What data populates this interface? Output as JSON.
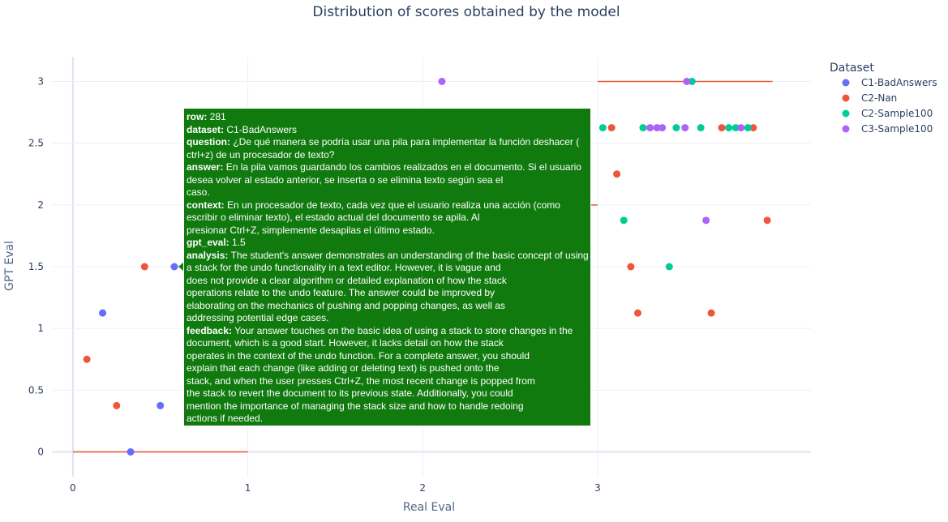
{
  "chart_data": {
    "type": "scatter",
    "title": "Distribution of scores obtained by the model",
    "xlabel": "Real Eval",
    "ylabel": "GPT Eval",
    "xlim": [
      -0.12,
      4.22
    ],
    "ylim": [
      -0.2,
      3.2
    ],
    "x_ticks": [
      "0",
      "1",
      "2",
      "3"
    ],
    "y_ticks": [
      "0",
      "0.5",
      "1",
      "1.5",
      "2",
      "2.5",
      "3"
    ],
    "grid": true,
    "legend_title": "Dataset",
    "legend_position": "top-right",
    "reference_lines": [
      {
        "x": [
          0,
          1
        ],
        "y": [
          0,
          0
        ],
        "color": "#ef553b"
      },
      {
        "x": [
          3,
          4
        ],
        "y": [
          3,
          3
        ],
        "color": "#ef553b"
      },
      {
        "x": [
          2.9,
          3.0
        ],
        "y": [
          2,
          2
        ],
        "color": "#ef553b"
      }
    ],
    "series": [
      {
        "name": "C1-BadAnswers",
        "color": "#636efa",
        "x": [
          0.17,
          0.33,
          0.5,
          0.58
        ],
        "y": [
          1.125,
          0,
          0.375,
          1.5
        ]
      },
      {
        "name": "C2-Nan",
        "color": "#ef553b",
        "x": [
          0.08,
          0.25,
          0.41,
          2.94,
          3.08,
          3.11,
          3.19,
          3.23,
          3.65,
          3.71,
          3.89,
          3.97
        ],
        "y": [
          0.75,
          0.375,
          1.5,
          1.875,
          2.625,
          2.25,
          1.5,
          1.125,
          1.125,
          2.625,
          2.625,
          1.875
        ]
      },
      {
        "name": "C2-Sample100",
        "color": "#00cc96",
        "x": [
          3.03,
          3.15,
          3.26,
          3.41,
          3.45,
          3.54,
          3.59,
          3.75,
          3.79,
          3.86
        ],
        "y": [
          2.625,
          1.875,
          2.625,
          1.5,
          2.625,
          3,
          2.625,
          2.625,
          2.625,
          2.625
        ]
      },
      {
        "name": "C3-Sample100",
        "color": "#ab63fa",
        "x": [
          2.11,
          3.3,
          3.34,
          3.37,
          3.5,
          3.51,
          3.62,
          3.82
        ],
        "y": [
          3,
          2.625,
          2.625,
          2.625,
          2.625,
          3,
          1.875,
          2.625
        ]
      }
    ]
  },
  "hover": {
    "row_label": "row:",
    "row_value": " 281",
    "dataset_label": "dataset:",
    "dataset_value": " C1-BadAnswers",
    "question_label": "question:",
    "question_lines": [
      " ¿De qué manera se podría usar una pila para implementar la función deshacer (",
      "ctrl+z) de un procesador de texto?"
    ],
    "answer_label": "answer:",
    "answer_lines": [
      " En la pila vamos guardando los cambios realizados en el documento. Si el usuario",
      "desea volver al estado anterior, se inserta o se elimina texto según sea el",
      "caso."
    ],
    "context_label": "context:",
    "context_lines": [
      " En un procesador de texto, cada vez que el usuario realiza una acción (como",
      "escribir o eliminar texto), el estado actual del documento se apila. Al",
      "presionar Ctrl+Z, simplemente desapilas el último estado."
    ],
    "gpt_eval_label": "gpt_eval:",
    "gpt_eval_value": " 1.5",
    "analysis_label": "analysis:",
    "analysis_lines": [
      " The student's answer demonstrates an understanding of the basic concept of using",
      "a stack for the undo functionality in a text editor. However, it is vague and",
      "does not provide a clear algorithm or detailed explanation of how the stack",
      "operations relate to the undo feature. The answer could be improved by",
      "elaborating on the mechanics of pushing and popping changes, as well as",
      "addressing potential edge cases."
    ],
    "feedback_label": "feedback:",
    "feedback_lines": [
      " Your answer touches on the basic idea of using a stack to store changes in the",
      "document, which is a good start. However, it lacks detail on how the stack",
      "operates in the context of the undo function. For a complete answer, you should",
      "explain that each change (like adding or deleting text) is pushed onto the",
      "stack, and when the user presses Ctrl+Z, the most recent change is popped from",
      "the stack to revert the document to its previous state. Additionally, you could",
      "mention the importance of managing the stack size and how to handle redoing",
      "actions if needed."
    ]
  }
}
